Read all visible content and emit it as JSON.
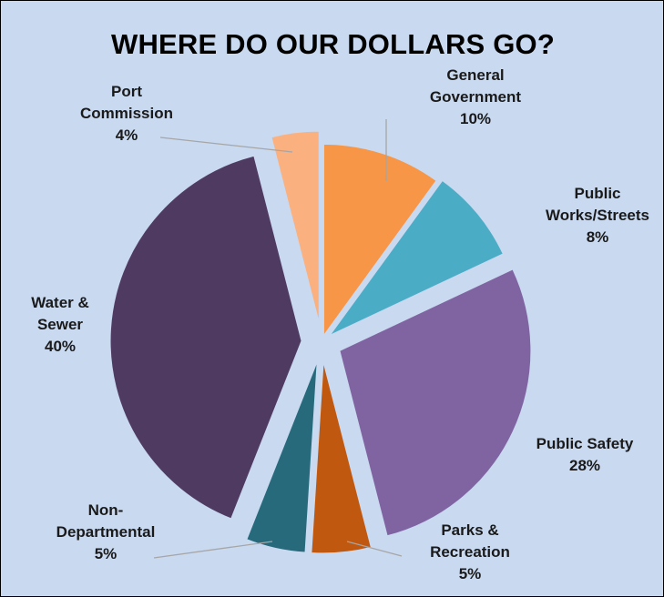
{
  "background_color": "#c9d9f0",
  "chart_data": {
    "type": "pie",
    "title": "WHERE DO OUR DOLLARS GO?",
    "exploded": true,
    "slices": [
      {
        "lines": [
          "General",
          "Government"
        ],
        "pct_label": "10%",
        "value": 10,
        "color": "#f79646"
      },
      {
        "lines": [
          "Public",
          "Works/Streets"
        ],
        "pct_label": "8%",
        "value": 8,
        "color": "#4bacc6"
      },
      {
        "lines": [
          "Public Safety"
        ],
        "pct_label": "28%",
        "value": 28,
        "color": "#8064a2"
      },
      {
        "lines": [
          "Parks &",
          "Recreation"
        ],
        "pct_label": "5%",
        "value": 5,
        "color": "#c0590f"
      },
      {
        "lines": [
          "Non-",
          "Departmental"
        ],
        "pct_label": "5%",
        "value": 5,
        "color": "#276a7c"
      },
      {
        "lines": [
          "Water &",
          "Sewer"
        ],
        "pct_label": "40%",
        "value": 40,
        "color": "#4f3b62"
      },
      {
        "lines": [
          "Port",
          "Commission"
        ],
        "pct_label": "4%",
        "value": 4,
        "color": "#fab07f"
      }
    ]
  }
}
